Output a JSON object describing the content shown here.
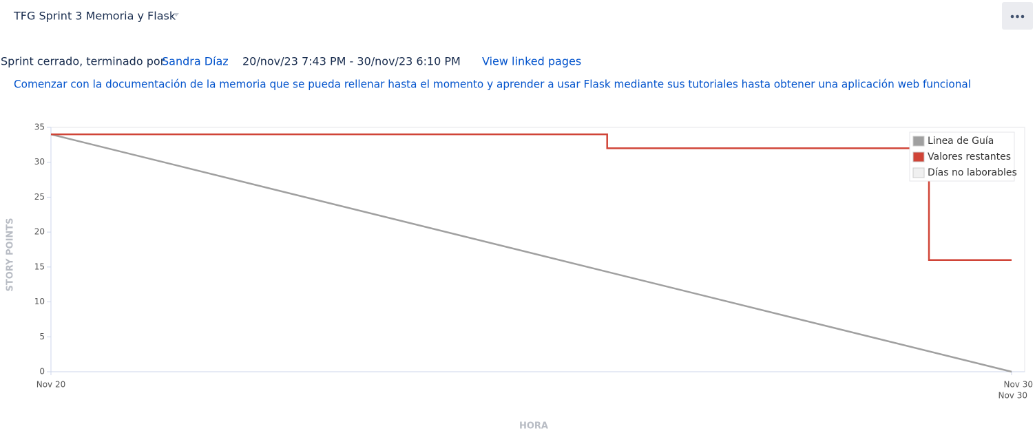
{
  "header": {
    "title": "TFG Sprint 3 Memoria y Flask"
  },
  "sprint": {
    "status": "Sprint cerrado, terminado por",
    "user": "Sandra Díaz",
    "dates": "20/nov/23 7:43 PM - 30/nov/23 6:10 PM",
    "link": "View linked pages",
    "goal": "Comenzar con la documentación de la memoria que se pueda rellenar hasta el momento y aprender a usar Flask mediante sus tutoriales hasta obtener una aplicación web funcional"
  },
  "chart_data": {
    "type": "line",
    "x_label": "HORA",
    "y_label": "STORY POINTS",
    "xlim": [
      20,
      30
    ],
    "xticks": [
      {
        "value": 20,
        "label": "Nov 20"
      },
      {
        "value": 30,
        "label": "Nov 30"
      }
    ],
    "x_sublabel": "Nov 30",
    "ylim": [
      0,
      35
    ],
    "yticks": [
      0,
      5,
      10,
      15,
      20,
      25,
      30,
      35
    ],
    "grid": false,
    "legend": "upper right",
    "series": [
      {
        "name": "Linea de Guía",
        "color": "#a0a0a0",
        "x": [
          20,
          30
        ],
        "values": [
          34,
          0
        ]
      },
      {
        "name": "Valores restantes",
        "color": "#d04437",
        "x": [
          20,
          25.79,
          25.79,
          29.14,
          29.14,
          30
        ],
        "values": [
          34,
          34,
          32,
          32,
          16,
          16
        ]
      },
      {
        "name": "Días no laborables",
        "color": "#f0f0f0",
        "x": [],
        "values": []
      }
    ]
  }
}
